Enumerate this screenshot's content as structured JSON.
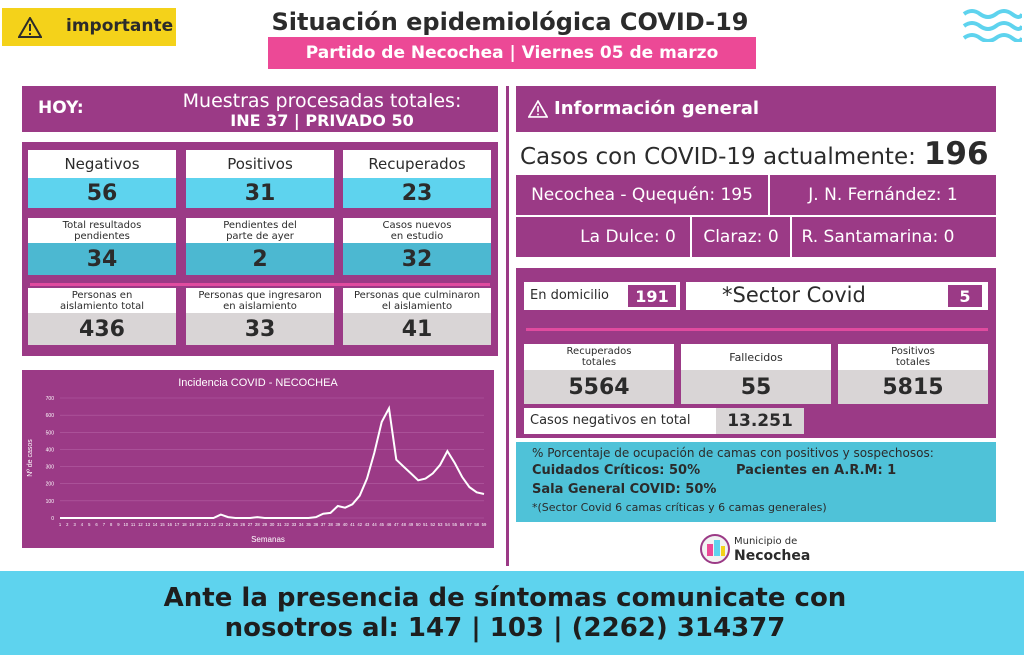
{
  "header": {
    "badge_label": "importante",
    "badge_icon": "warning-icon",
    "title": "Situación epidemiológica COVID-19",
    "subtitle": "Partido de Necochea | Viernes 05 de marzo",
    "brand_icon": "waves-icon"
  },
  "hoy": {
    "label": "HOY:",
    "muestras_title": "Muestras procesadas totales:",
    "muestras_values": "INE 37 | PRIVADO 50"
  },
  "stats": {
    "negativos": {
      "label": "Negativos",
      "value": "56"
    },
    "positivos": {
      "label": "Positivos",
      "value": "31"
    },
    "recuperados": {
      "label": "Recuperados",
      "value": "23"
    },
    "total_pendientes": {
      "label_1": "Total resultados",
      "label_2": "pendientes",
      "value": "34"
    },
    "pendientes_ayer": {
      "label_1": "Pendientes del",
      "label_2": "parte de ayer",
      "value": "2"
    },
    "casos_nuevos": {
      "label_1": "Casos nuevos",
      "label_2": "en estudio",
      "value": "32"
    },
    "aislamiento_total": {
      "label_1": "Personas en",
      "label_2": "aislamiento total",
      "value": "436"
    },
    "ingresaron": {
      "label_1": "Personas que ingresaron",
      "label_2": "en aislamiento",
      "value": "33"
    },
    "culminaron": {
      "label_1": "Personas que culminaron",
      "label_2": "el aislamiento",
      "value": "41"
    }
  },
  "chart_data": {
    "type": "line",
    "title": "Incidencia COVID - NECOCHEA",
    "xlabel": "Semanas",
    "ylabel": "Nº de casos",
    "ylim": [
      0,
      700
    ],
    "yticks": [
      0,
      100,
      200,
      300,
      400,
      500,
      600,
      700
    ],
    "grid": true,
    "x": [
      1,
      2,
      3,
      4,
      5,
      6,
      7,
      8,
      9,
      10,
      11,
      12,
      13,
      14,
      15,
      16,
      17,
      18,
      19,
      20,
      21,
      22,
      23,
      24,
      25,
      26,
      27,
      28,
      29,
      30,
      31,
      32,
      33,
      34,
      35,
      36,
      37,
      38,
      39,
      40,
      41,
      42,
      43,
      44,
      45,
      46,
      47,
      48,
      49,
      50,
      51,
      52,
      53,
      54,
      55,
      56,
      57,
      58,
      59
    ],
    "series": [
      {
        "values": [
          0,
          0,
          0,
          0,
          0,
          0,
          0,
          0,
          0,
          0,
          0,
          0,
          0,
          0,
          0,
          0,
          0,
          0,
          0,
          0,
          0,
          0,
          20,
          5,
          0,
          0,
          0,
          5,
          0,
          0,
          0,
          0,
          0,
          0,
          0,
          5,
          25,
          30,
          70,
          60,
          80,
          130,
          230,
          380,
          560,
          640,
          340,
          300,
          260,
          220,
          230,
          260,
          310,
          390,
          320,
          240,
          180,
          150,
          140
        ]
      }
    ],
    "line_color": "#ffffff"
  },
  "info": {
    "header_label": "Información general",
    "casos_label": "Casos con COVID-19 actualmente:",
    "casos_value": "196",
    "loc_necochea": "Necochea - Quequén: 195",
    "loc_fernandez": "J. N. Fernández: 1",
    "loc_dulce": "La Dulce: 0",
    "loc_claraz": "Claraz: 0",
    "loc_santamarina": "R. Santamarina: 0"
  },
  "mid": {
    "domicilio_label": "En domicilio",
    "domicilio_value": "191",
    "sector_label": "*Sector Covid",
    "sector_value": "5",
    "recuperados_label_1": "Recuperados",
    "recuperados_label_2": "totales",
    "recuperados_value": "5564",
    "fallecidos_label": "Fallecidos",
    "fallecidos_value": "55",
    "positivos_label_1": "Positivos",
    "positivos_label_2": "totales",
    "positivos_value": "5815",
    "negativos_label": "Casos negativos en total",
    "negativos_value": "13.251"
  },
  "occupancy": {
    "line1": "% Porcentaje de ocupación de camas con positivos y sospechosos:",
    "criticos": "Cuidados Críticos: 50%",
    "arm": "Pacientes en A.R.M: 1",
    "sala": "Sala General COVID: 50%",
    "note": "*(Sector Covid 6 camas críticas y  6 camas generales)"
  },
  "logo": {
    "small": "Municipio de",
    "big": "Necochea",
    "icon": "municipio-logo-icon"
  },
  "footer": {
    "line1": "Ante la presencia de síntomas comunicate con",
    "line2": "nosotros al: 147 | 103 | (2262) 314377"
  },
  "colors": {
    "purple": "#9b3a86",
    "pink": "#ec4996",
    "cyan": "#5ed3ee",
    "yellow": "#f4d21a",
    "grey": "#d9d5d6"
  }
}
